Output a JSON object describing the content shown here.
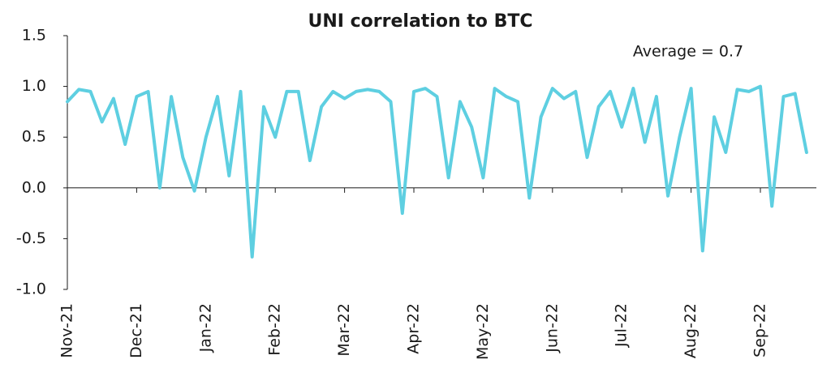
{
  "chart_data": {
    "type": "line",
    "title": "UNI correlation to BTC",
    "annotation": "Average = 0.7",
    "categories": [
      "Nov-21",
      null,
      null,
      null,
      null,
      null,
      "Dec-21",
      null,
      null,
      null,
      null,
      null,
      "Jan-22",
      null,
      null,
      null,
      null,
      null,
      "Feb-22",
      null,
      null,
      null,
      null,
      null,
      "Mar-22",
      null,
      null,
      null,
      null,
      null,
      "Apr-22",
      null,
      null,
      null,
      null,
      null,
      "May-22",
      null,
      null,
      null,
      null,
      null,
      "Jun-22",
      null,
      null,
      null,
      null,
      null,
      "Jul-22",
      null,
      null,
      null,
      null,
      null,
      "Aug-22",
      null,
      null,
      null,
      null,
      null,
      "Sep-22",
      null,
      null,
      null,
      null
    ],
    "series": [
      {
        "name": "UNI correlation to BTC",
        "color": "#5ecfe1",
        "values": [
          0.85,
          0.97,
          0.95,
          0.65,
          0.88,
          0.43,
          0.9,
          0.95,
          0.0,
          0.9,
          0.3,
          -0.03,
          0.5,
          0.9,
          0.12,
          0.95,
          -0.68,
          0.8,
          0.5,
          0.95,
          0.95,
          0.27,
          0.8,
          0.95,
          0.88,
          0.95,
          0.97,
          0.95,
          0.85,
          -0.25,
          0.95,
          0.98,
          0.9,
          0.1,
          0.85,
          0.6,
          0.1,
          0.98,
          0.9,
          0.85,
          -0.1,
          0.7,
          0.98,
          0.88,
          0.95,
          0.3,
          0.8,
          0.95,
          0.6,
          0.98,
          0.45,
          0.9,
          -0.08,
          0.5,
          0.98,
          -0.62,
          0.7,
          0.35,
          0.97,
          0.95,
          1.0,
          -0.18,
          0.9,
          0.93,
          0.35
        ]
      }
    ],
    "ylim": [
      -1.0,
      1.5
    ],
    "yticks": [
      {
        "value": -1.0,
        "label": "-1.0"
      },
      -0.5,
      {
        "value": 0.0,
        "label": "0.0"
      },
      0.5,
      {
        "value": 1.0,
        "label": "1.0"
      },
      1.5
    ]
  }
}
